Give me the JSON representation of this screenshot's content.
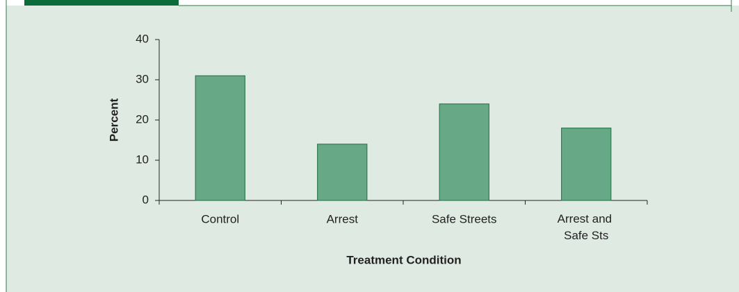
{
  "chart_data": {
    "type": "bar",
    "categories": [
      "Control",
      "Arrest",
      "Safe Streets",
      "Arrest and Safe Sts"
    ],
    "values": [
      31,
      14,
      24,
      18
    ],
    "color": "#67a886",
    "edge_color": "#1f6e3e",
    "xlabel": "Treatment Condition",
    "ylabel": "Percent",
    "ylim": [
      0,
      40
    ],
    "yticks": [
      0,
      10,
      20,
      30,
      40
    ],
    "grid": false
  }
}
